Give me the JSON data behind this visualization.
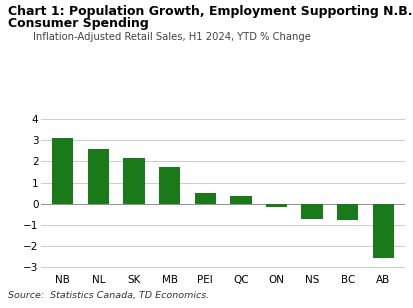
{
  "title_line1": "Chart 1: Population Growth, Employment Supporting N.B.",
  "title_line2": "Consumer Spending",
  "subtitle": "Inflation-Adjusted Retail Sales, H1 2024, YTD % Change",
  "categories": [
    "NB",
    "NL",
    "SK",
    "MB",
    "PEI",
    "QC",
    "ON",
    "NS",
    "BC",
    "AB"
  ],
  "values": [
    3.1,
    2.6,
    2.15,
    1.75,
    0.5,
    0.35,
    -0.15,
    -0.75,
    -0.8,
    -2.6
  ],
  "bar_color": "#1a7a1a",
  "ylim": [
    -3.2,
    4.4
  ],
  "yticks": [
    -3,
    -2,
    -1,
    0,
    1,
    2,
    3,
    4
  ],
  "source_text": "Source:  Statistics Canada, TD Economics.",
  "background_color": "#ffffff",
  "grid_color": "#cccccc",
  "title_fontsize": 9.0,
  "subtitle_fontsize": 7.2,
  "tick_fontsize": 7.5,
  "source_fontsize": 6.8
}
